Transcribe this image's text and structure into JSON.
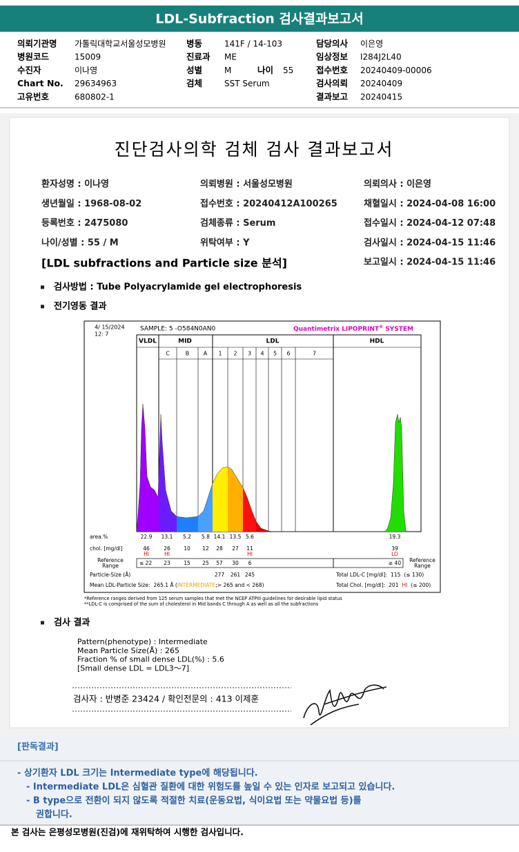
{
  "header": {
    "title": "LDL-Subfraction 검사결과보고서"
  },
  "info": {
    "columns": [
      [
        {
          "label": "의뢰기관명",
          "value": "가톨릭대학교서울성모병원"
        },
        {
          "label": "병원코드",
          "value": "15009"
        },
        {
          "label": "수진자",
          "value": "이나영"
        },
        {
          "label": "Chart No.",
          "value": "29634963"
        },
        {
          "label": "고유번호",
          "value": "680802-1"
        }
      ],
      [
        {
          "label": "병동",
          "value": "141F / 14-103"
        },
        {
          "label": "진료과",
          "value": "ME"
        },
        {
          "label": "성별",
          "value": "M",
          "label2": "나이",
          "value2": "55"
        },
        {
          "label": "검체",
          "value": "SST Serum"
        }
      ],
      [
        {
          "label": "담당의사",
          "value": "이은영"
        },
        {
          "label": "임상정보",
          "value": "I284J2L40"
        },
        {
          "label": "접수번호",
          "value": "20240409-00006"
        },
        {
          "label": "검사의뢰",
          "value": "20240409"
        },
        {
          "label": "결과보고",
          "value": "20240415"
        }
      ]
    ]
  },
  "report": {
    "title": "진단검사의학 검체 검사 결과보고서",
    "fields": [
      [
        "환자성명 : 이나영",
        "생년월일 : 1968-08-02",
        "등록번호 : 2475080",
        "나이/성별 : 55 / M"
      ],
      [
        "의뢰병원 : 서울성모병원",
        "접수번호 : 20240412A100265",
        "검체종류 : Serum",
        "위탁여부 : Y"
      ],
      [
        "의뢰의사 : 이은영",
        "채혈일시 : 2024-04-08 16:00",
        "접수일시 : 2024-04-12 07:48",
        "검사일시 : 2024-04-15 11:46",
        "보고일시 : 2024-04-15 11:46"
      ]
    ],
    "subtitle": "[LDL subfractions and Particle size 분석]",
    "method": "검사방법 : Tube Polyacrylamide gel electrophoresis",
    "electrophoresis_heading": "전기영동 결과",
    "result_heading": "검사 결과",
    "results": [
      "Pattern(phenotype) : Intermediate",
      "Mean Particle Size(Å) : 265",
      "Fraction % of small dense LDL(%) : 5.6",
      "[Small dense LDL = LDL3～7]"
    ],
    "signature": "검사자 : 반병준  23424   /   확인전문의 : 413  이제훈"
  },
  "chart": {
    "date": [
      "4/ 15/2024",
      "12: 7"
    ],
    "sample": "SAMPLE:   5 -O584N0AN0",
    "brand": [
      "Quantimetrix LIPOPRINT",
      "®",
      " SYSTEM"
    ],
    "bands": [
      "VLDL",
      "MID",
      "LDL",
      "HDL"
    ],
    "subbands": [
      "C",
      "B",
      "A",
      "1",
      "2",
      "3",
      "4",
      "5",
      "6",
      "7"
    ],
    "area": {
      "label": "area.%",
      "values": [
        "22.9",
        "13.1",
        "5.2",
        "5.8",
        "14.1",
        "13.5",
        "5.6",
        "19.3"
      ]
    },
    "chol": {
      "label": "chol. [mg/dl]",
      "values": [
        "46",
        "26",
        "10",
        "12",
        "28",
        "27",
        "11",
        "39"
      ],
      "flags": [
        "HI",
        "HI",
        null,
        null,
        null,
        null,
        "HI",
        "LO"
      ]
    },
    "reference": {
      "label": [
        "Reference",
        "Range"
      ],
      "values": [
        "≤ 22",
        "23",
        "15",
        "25",
        "57",
        "30",
        "6",
        "≥ 40"
      ]
    },
    "particle": {
      "label": "Particle-Size (Å)",
      "values": [
        null,
        null,
        null,
        null,
        "277",
        "261",
        "245",
        null
      ]
    },
    "total_ldl": [
      "Total LDL-C [mg/dl]:",
      "115",
      "(≤ 130)"
    ],
    "mean": [
      "Mean LDL-Particle Size:",
      "265.1 Å  (",
      "INTERMEDIATE",
      ";> 265 and < 268)"
    ],
    "total_chol": [
      "Total Chol. [mg/dl]:",
      "201",
      "HI",
      "(≤ 200)"
    ],
    "notes": [
      "*Reference ranges derived from 125 serum samples that met the NCEP ATPIII guidelines for desirable lipid status",
      "**LDL-C is comprised of the sum of cholesterol in Mid bands C through A as well as all the subfractions"
    ]
  },
  "interpretation": {
    "heading": "[판독결과]",
    "lines": [
      "-  상기환자 LDL 크기는 Intermediate type에 해당됩니다.",
      "-  Intermediate LDL은 심혈관 질환에 대한 위험도를 높일 수 있는 인자로 보고되고 있습니다.",
      "-  B type으로 전환이 되지 않도록 적절한 치료(운동요법, 식이요법 또는 약물요법 등)를",
      "권합니다."
    ]
  },
  "footer": "본 검사는 은평성모병원(진검)에 재위탁하여 시행한 검사입니다."
}
